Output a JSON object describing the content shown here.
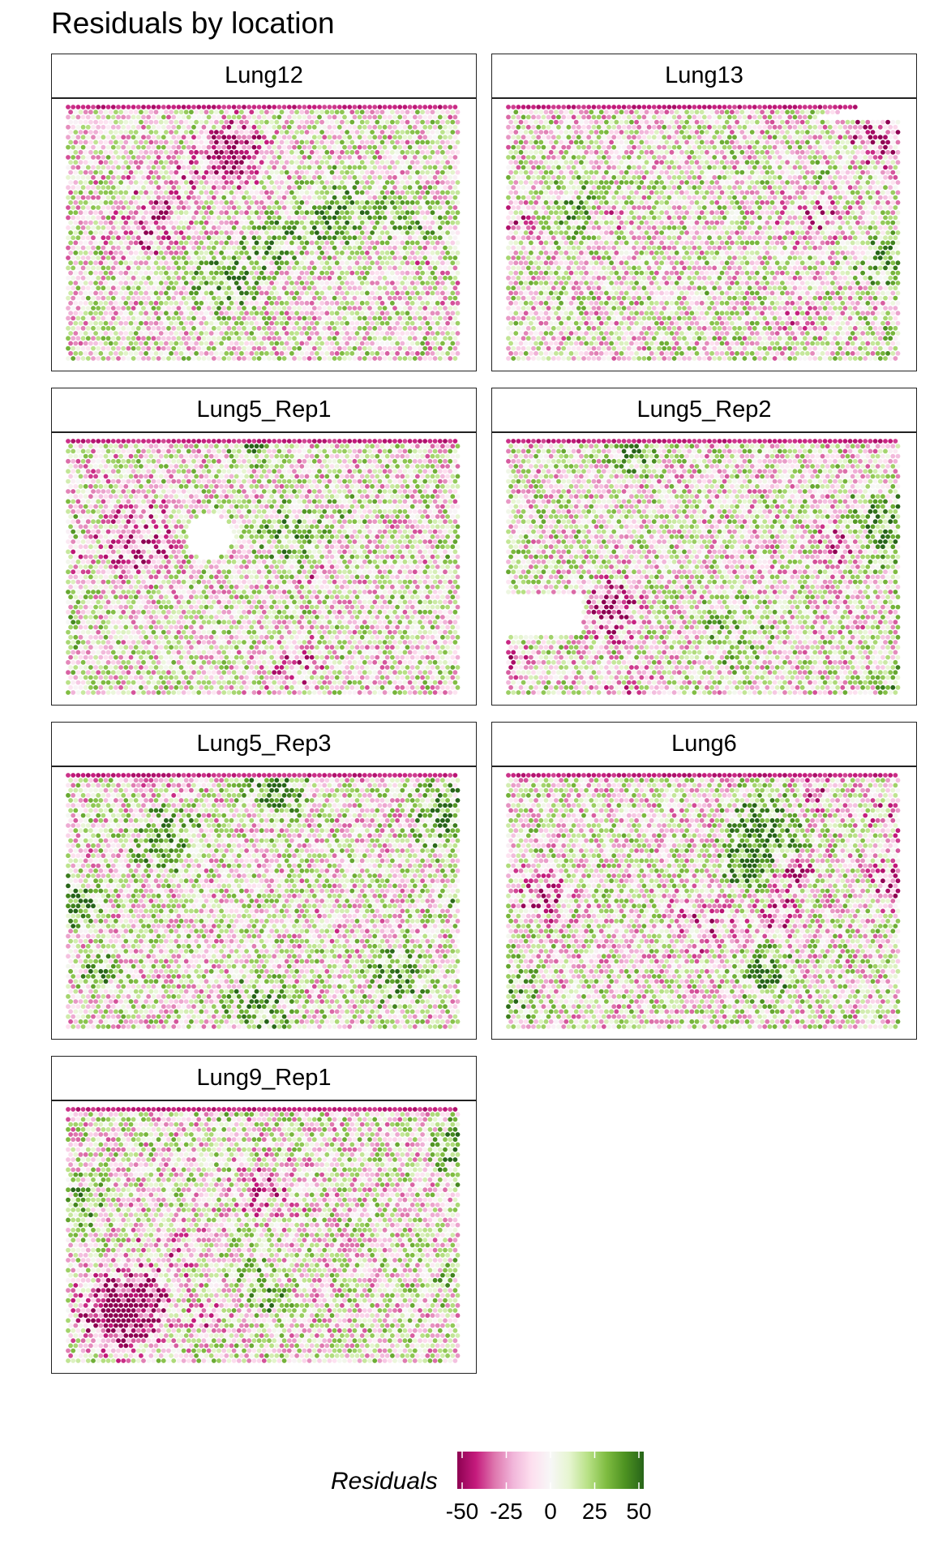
{
  "chart_data": {
    "type": "heatmap",
    "title": "Residuals by location",
    "facets": [
      "Lung12",
      "Lung13",
      "Lung5_Rep1",
      "Lung5_Rep2",
      "Lung5_Rep3",
      "Lung6",
      "Lung9_Rep1"
    ],
    "legend": {
      "title": "Residuals",
      "ticks": [
        "-50",
        "-25",
        "0",
        "25",
        "50"
      ],
      "range": [
        -50,
        50
      ],
      "colors": [
        "#8e0152",
        "#c51b7d",
        "#de77ae",
        "#f1b6da",
        "#fde0ef",
        "#f7f7f7",
        "#e6f5d0",
        "#b8e186",
        "#7fbc41",
        "#4d9221",
        "#276419"
      ]
    },
    "grid": false
  }
}
